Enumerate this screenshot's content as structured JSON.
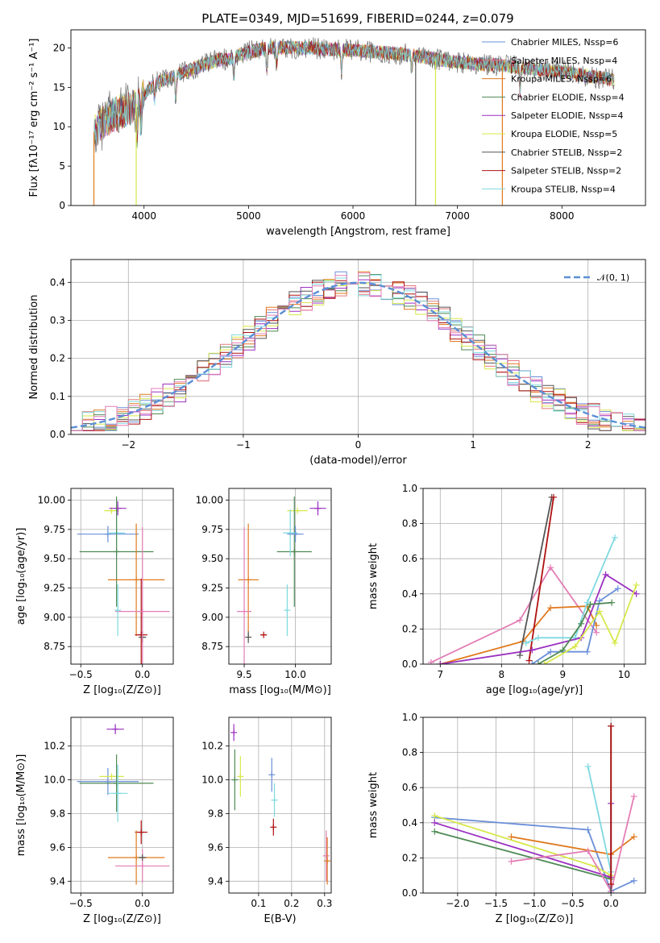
{
  "figure": {
    "title": "PLATE=0349, MJD=51699, FIBERID=0244, z=0.079"
  },
  "colors": {
    "Chabrier MILES": "#6a8fd8",
    "Salpeter MILES": "#e37b7b",
    "Kroupa MILES": "#e07a1f",
    "Chabrier ELODIE": "#4f8a55",
    "Salpeter ELODIE": "#9b30c0",
    "Kroupa ELODIE": "#d7e84a",
    "Chabrier STELIB": "#555555",
    "Salpeter STELIB": "#b01010",
    "Kroupa STELIB": "#7ed9e0",
    "pink": "#e37eb6",
    "normal_curve": "#5b8fd6"
  },
  "chart_data": [
    {
      "id": "spectrum",
      "type": "line",
      "title": "PLATE=0349, MJD=51699, FIBERID=0244, z=0.079",
      "xlabel": "wavelength [Angstrom, rest frame]",
      "ylabel": "Flux [fλ10⁻¹⁷ erg cm⁻² s⁻¹ A⁻¹]",
      "xlim": [
        3300,
        8800
      ],
      "ylim": [
        0,
        22.3
      ],
      "xticks": [
        "4000",
        "5000",
        "6000",
        "7000",
        "8000"
      ],
      "xtick_values": [
        4000,
        5000,
        6000,
        7000,
        8000
      ],
      "yticks": [
        "0",
        "5",
        "10",
        "15",
        "20"
      ],
      "ytick_values": [
        0,
        5,
        10,
        15,
        20
      ],
      "grid": false,
      "legend": [
        "Chabrier MILES, N_SSP=6",
        "Salpeter MILES, N_SSP=4",
        "Kroupa MILES, N_SSP=6",
        "Chabrier ELODIE, N_SSP=4",
        "Salpeter ELODIE, N_SSP=4",
        "Kroupa ELODIE, N_SSP=5",
        "Chabrier STELIB, N_SSP=2",
        "Salpeter STELIB, N_SSP=2",
        "Kroupa STELIB, N_SSP=4"
      ],
      "legend_placement": "right",
      "continuum": {
        "x": [
          3500,
          3600,
          3700,
          3800,
          3900,
          4000,
          4100,
          4200,
          4300,
          4400,
          4500,
          4600,
          4700,
          4800,
          4900,
          5000,
          5200,
          5400,
          5600,
          5800,
          6000,
          6200,
          6400,
          6600,
          6800,
          7000,
          7200,
          7400,
          7600,
          7800,
          8000,
          8200,
          8500
        ],
        "y": [
          9,
          10.5,
          11.5,
          12,
          12.5,
          14,
          15.5,
          16,
          16.5,
          17,
          17.5,
          18,
          18.5,
          18.5,
          19,
          19.5,
          20,
          20,
          20,
          19.8,
          19.7,
          19.5,
          19.3,
          19,
          18.5,
          18.2,
          18,
          17.8,
          17.5,
          17.2,
          17,
          16.5,
          16
        ]
      }
    },
    {
      "id": "residuals",
      "type": "line",
      "xlabel": "(data-model)/error",
      "ylabel": "Normed distribution",
      "xlim": [
        -2.5,
        2.5
      ],
      "ylim": [
        0,
        0.46
      ],
      "xticks": [
        "−2",
        "−1",
        "0",
        "1",
        "2"
      ],
      "xtick_values": [
        -2,
        -1,
        0,
        1,
        2
      ],
      "yticks": [
        "0.0",
        "0.1",
        "0.2",
        "0.3",
        "0.4"
      ],
      "ytick_values": [
        0,
        0.1,
        0.2,
        0.3,
        0.4
      ],
      "grid": true,
      "legend": [
        "𝒩(0, 1)"
      ],
      "legend_placement": "top-right",
      "series": [
        {
          "name": "𝒩(0, 1)",
          "mean": 0,
          "sigma": 1
        }
      ]
    },
    {
      "id": "age-z",
      "type": "scatter",
      "xlabel": "Z [log₁₀(Z/Z⊙)]",
      "ylabel": "age  [log₁₀(age/yr)]",
      "xlim": [
        -0.58,
        0.25
      ],
      "ylim": [
        8.6,
        10.1
      ],
      "xticks": [
        "−0.5",
        "0.0"
      ],
      "xtick_values": [
        -0.5,
        0
      ],
      "yticks": [
        "8.75",
        "9.00",
        "9.25",
        "9.50",
        "9.75",
        "10.00"
      ],
      "ytick_values": [
        8.75,
        9.0,
        9.25,
        9.5,
        9.75,
        10.0
      ],
      "grid": true,
      "points": [
        {
          "c": "Kroupa ELODIE",
          "x": -0.25,
          "y": 9.91,
          "xe": 0.06,
          "ye": 0.0
        },
        {
          "c": "Salpeter ELODIE",
          "x": -0.2,
          "y": 9.93,
          "xe": 0.07,
          "ye": 0.06
        },
        {
          "c": "Chabrier MILES",
          "x": -0.28,
          "y": 9.71,
          "xe": 0.25,
          "ye": 0.07
        },
        {
          "c": "Kroupa STELIB",
          "x": -0.21,
          "y": 9.72,
          "xe": 0.07,
          "ye": 0.2
        },
        {
          "c": "Chabrier ELODIE",
          "x": -0.21,
          "y": 9.56,
          "xe": 0.3,
          "ye": 0.47
        },
        {
          "c": "Kroupa MILES",
          "x": -0.05,
          "y": 9.32,
          "xe": 0.23,
          "ye": 0.48
        },
        {
          "c": "Salpeter STELIB",
          "x": -0.01,
          "y": 8.85,
          "xe": 0.05,
          "ye": 0.48
        },
        {
          "c": "Chabrier STELIB",
          "x": 0.0,
          "y": 8.83,
          "xe": 0.03,
          "ye": 0.05
        },
        {
          "c": "pink",
          "x": 0.0,
          "y": 9.05,
          "xe": 0.22,
          "ye": 0.72
        },
        {
          "c": "Kroupa STELIB",
          "x": -0.2,
          "y": 9.06,
          "xe": 0.0,
          "ye": 0.22
        }
      ]
    },
    {
      "id": "age-mass",
      "type": "scatter",
      "xlabel": "mass [log₁₀(M/M⊙)]",
      "ylabel": "",
      "xlim": [
        9.35,
        10.35
      ],
      "ylim": [
        8.6,
        10.1
      ],
      "xticks": [
        "9.5",
        "10.0"
      ],
      "xtick_values": [
        9.5,
        10.0
      ],
      "yticks": [
        "8.75",
        "9.00",
        "9.25",
        "9.50",
        "9.75",
        "10.00"
      ],
      "ytick_values": [
        8.75,
        9.0,
        9.25,
        9.5,
        9.75,
        10.0
      ],
      "grid": true,
      "points": [
        {
          "c": "Salpeter ELODIE",
          "x": 10.22,
          "y": 9.93,
          "xe": 0.08,
          "ye": 0.06
        },
        {
          "c": "Kroupa ELODIE",
          "x": 10.02,
          "y": 9.91,
          "xe": 0.1,
          "ye": 0.0
        },
        {
          "c": "Chabrier ELODIE",
          "x": 9.99,
          "y": 9.56,
          "xe": 0.17,
          "ye": 0.47
        },
        {
          "c": "Kroupa STELIB",
          "x": 9.95,
          "y": 9.72,
          "xe": 0.07,
          "ye": 0.2
        },
        {
          "c": "Chabrier MILES",
          "x": 10.0,
          "y": 9.71,
          "xe": 0.08,
          "ye": 0.07
        },
        {
          "c": "Kroupa MILES",
          "x": 9.54,
          "y": 9.32,
          "xe": 0.1,
          "ye": 0.48
        },
        {
          "c": "pink",
          "x": 9.5,
          "y": 9.05,
          "xe": 0.07,
          "ye": 0.72
        },
        {
          "c": "Chabrier STELIB",
          "x": 9.54,
          "y": 8.83,
          "xe": 0.0,
          "ye": 0.05
        },
        {
          "c": "Salpeter STELIB",
          "x": 9.69,
          "y": 8.85,
          "xe": 0.03,
          "ye": 0.0
        },
        {
          "c": "Kroupa STELIB",
          "x": 9.92,
          "y": 9.06,
          "xe": 0.0,
          "ye": 0.22
        }
      ]
    },
    {
      "id": "weight-age",
      "type": "line",
      "xlabel": "age  [log₁₀(age/yr)]",
      "ylabel": "mass weight",
      "xlim": [
        6.72,
        10.35
      ],
      "ylim": [
        0,
        1.0
      ],
      "xticks": [
        "7",
        "8",
        "9",
        "10"
      ],
      "xtick_values": [
        7,
        8,
        9,
        10
      ],
      "yticks": [
        "0.0",
        "0.2",
        "0.4",
        "0.6",
        "0.8",
        "1.0"
      ],
      "ytick_values": [
        0,
        0.2,
        0.4,
        0.6,
        0.8,
        1.0
      ],
      "grid": true,
      "series": [
        {
          "c": "pink",
          "x": [
            6.85,
            8.3,
            8.8,
            9.55
          ],
          "y": [
            0.01,
            0.25,
            0.55,
            0.18
          ]
        },
        {
          "c": "Kroupa MILES",
          "x": [
            7.0,
            8.35,
            8.8,
            9.4,
            9.55
          ],
          "y": [
            0.0,
            0.13,
            0.32,
            0.33,
            0.22
          ]
        },
        {
          "c": "Chabrier STELIB",
          "x": [
            8.3,
            8.82
          ],
          "y": [
            0.05,
            0.95
          ]
        },
        {
          "c": "Salpeter STELIB",
          "x": [
            8.45,
            8.85
          ],
          "y": [
            0.02,
            0.95
          ]
        },
        {
          "c": "Chabrier MILES",
          "x": [
            8.5,
            8.8,
            9.4,
            9.6,
            9.9
          ],
          "y": [
            0.0,
            0.07,
            0.07,
            0.36,
            0.43
          ]
        },
        {
          "c": "Kroupa STELIB",
          "x": [
            8.4,
            8.6,
            9.2,
            9.4,
            9.85
          ],
          "y": [
            0.12,
            0.15,
            0.15,
            0.35,
            0.72
          ]
        },
        {
          "c": "Salpeter ELODIE",
          "x": [
            7.0,
            8.5,
            9.3,
            9.7,
            10.2
          ],
          "y": [
            0.0,
            0.08,
            0.15,
            0.51,
            0.4
          ]
        },
        {
          "c": "Chabrier ELODIE",
          "x": [
            8.6,
            9.0,
            9.3,
            9.45,
            9.8
          ],
          "y": [
            0.0,
            0.08,
            0.23,
            0.34,
            0.35
          ]
        },
        {
          "c": "Kroupa ELODIE",
          "x": [
            8.7,
            9.2,
            9.6,
            9.85,
            10.2
          ],
          "y": [
            0.0,
            0.1,
            0.3,
            0.12,
            0.45
          ]
        }
      ]
    },
    {
      "id": "mass-z",
      "type": "scatter",
      "xlabel": "Z [log₁₀(Z/Z⊙)]",
      "ylabel": "mass [log₁₀(M/M⊙)]",
      "xlim": [
        -0.58,
        0.25
      ],
      "ylim": [
        9.33,
        10.37
      ],
      "xticks": [
        "−0.5",
        "0.0"
      ],
      "xtick_values": [
        -0.5,
        0
      ],
      "yticks": [
        "9.4",
        "9.6",
        "9.8",
        "10.0",
        "10.2"
      ],
      "ytick_values": [
        9.4,
        9.6,
        9.8,
        10.0,
        10.2
      ],
      "grid": true,
      "points": [
        {
          "c": "Salpeter ELODIE",
          "x": -0.22,
          "y": 10.3,
          "xe": 0.07,
          "ye": 0.03
        },
        {
          "c": "Chabrier MILES",
          "x": -0.28,
          "y": 9.99,
          "xe": 0.25,
          "ye": 0.08
        },
        {
          "c": "Kroupa ELODIE",
          "x": -0.25,
          "y": 10.02,
          "xe": 0.1,
          "ye": 0.0
        },
        {
          "c": "Chabrier ELODIE",
          "x": -0.21,
          "y": 9.98,
          "xe": 0.3,
          "ye": 0.17
        },
        {
          "c": "Kroupa STELIB",
          "x": -0.2,
          "y": 9.92,
          "xe": 0.08,
          "ye": 0.17
        },
        {
          "c": "Salpeter STELIB",
          "x": -0.01,
          "y": 9.69,
          "xe": 0.05,
          "ye": 0.07
        },
        {
          "c": "Kroupa MILES",
          "x": -0.05,
          "y": 9.54,
          "xe": 0.23,
          "ye": 0.16
        },
        {
          "c": "pink",
          "x": 0.0,
          "y": 9.49,
          "xe": 0.22,
          "ye": 0.1
        },
        {
          "c": "Chabrier STELIB",
          "x": 0.0,
          "y": 9.54,
          "xe": 0.03,
          "ye": 0.0
        }
      ]
    },
    {
      "id": "mass-ebv",
      "type": "scatter",
      "xlabel": "E(B-V)",
      "ylabel": "",
      "xlim": [
        0.01,
        0.32
      ],
      "ylim": [
        9.33,
        10.37
      ],
      "xticks": [
        "0.1",
        "0.2",
        "0.3"
      ],
      "xtick_values": [
        0.1,
        0.2,
        0.3
      ],
      "yticks": [
        "9.4",
        "9.6",
        "9.8",
        "10.0",
        "10.2"
      ],
      "ytick_values": [
        9.4,
        9.6,
        9.8,
        10.0,
        10.2
      ],
      "grid": true,
      "points": [
        {
          "c": "Salpeter ELODIE",
          "x": 0.025,
          "y": 10.28,
          "xe": 0.0,
          "ye": 0.05
        },
        {
          "c": "Chabrier ELODIE",
          "x": 0.028,
          "y": 10.0,
          "xe": 0.0,
          "ye": 0.18
        },
        {
          "c": "Kroupa ELODIE",
          "x": 0.045,
          "y": 10.02,
          "xe": 0.0,
          "ye": 0.12
        },
        {
          "c": "Chabrier MILES",
          "x": 0.14,
          "y": 10.03,
          "xe": 0.0,
          "ye": 0.1
        },
        {
          "c": "Kroupa STELIB",
          "x": 0.148,
          "y": 9.88,
          "xe": 0.0,
          "ye": 0.1
        },
        {
          "c": "Salpeter STELIB",
          "x": 0.145,
          "y": 9.72,
          "xe": 0.0,
          "ye": 0.05
        },
        {
          "c": "pink",
          "x": 0.305,
          "y": 9.55,
          "xe": 0.0,
          "ye": 0.15
        },
        {
          "c": "Kroupa MILES",
          "x": 0.308,
          "y": 9.52,
          "xe": 0.0,
          "ye": 0.14
        }
      ]
    },
    {
      "id": "weight-z",
      "type": "line",
      "xlabel": "Z [log₁₀(Z/Z⊙)]",
      "ylabel": "mass weight",
      "xlim": [
        -2.45,
        0.45
      ],
      "ylim": [
        0,
        1.0
      ],
      "xticks": [
        "−2.0",
        "−1.5",
        "−1.0",
        "−0.5",
        "0.0"
      ],
      "xtick_values": [
        -2.0,
        -1.5,
        -1.0,
        -0.5,
        0.0
      ],
      "yticks": [
        "0.0",
        "0.2",
        "0.4",
        "0.6",
        "0.8",
        "1.0"
      ],
      "ytick_values": [
        0,
        0.2,
        0.4,
        0.6,
        0.8,
        1.0
      ],
      "grid": true,
      "series": [
        {
          "c": "Chabrier MILES",
          "x": [
            -2.3,
            -0.3,
            0.0,
            0.3
          ],
          "y": [
            0.43,
            0.36,
            0.01,
            0.07
          ]
        },
        {
          "c": "Kroupa ELODIE",
          "x": [
            -2.3,
            -0.2,
            0.0
          ],
          "y": [
            0.44,
            0.15,
            0.1
          ]
        },
        {
          "c": "Salpeter ELODIE",
          "x": [
            -2.3,
            0.0,
            0.0
          ],
          "y": [
            0.4,
            0.09,
            0.51
          ]
        },
        {
          "c": "Chabrier ELODIE",
          "x": [
            -2.3,
            0.0
          ],
          "y": [
            0.35,
            0.08
          ]
        },
        {
          "c": "Kroupa MILES",
          "x": [
            -1.3,
            0.0,
            0.3
          ],
          "y": [
            0.32,
            0.22,
            0.32
          ]
        },
        {
          "c": "pink",
          "x": [
            -1.3,
            -0.3,
            0.0,
            0.3
          ],
          "y": [
            0.18,
            0.24,
            0.01,
            0.55
          ]
        },
        {
          "c": "Kroupa STELIB",
          "x": [
            -0.3,
            0.0
          ],
          "y": [
            0.72,
            0.12
          ]
        },
        {
          "c": "Chabrier STELIB",
          "x": [
            0.0,
            0.0
          ],
          "y": [
            0.0,
            0.95
          ]
        },
        {
          "c": "Salpeter STELIB",
          "x": [
            0.0,
            0.0
          ],
          "y": [
            0.05,
            0.95
          ]
        }
      ]
    }
  ]
}
